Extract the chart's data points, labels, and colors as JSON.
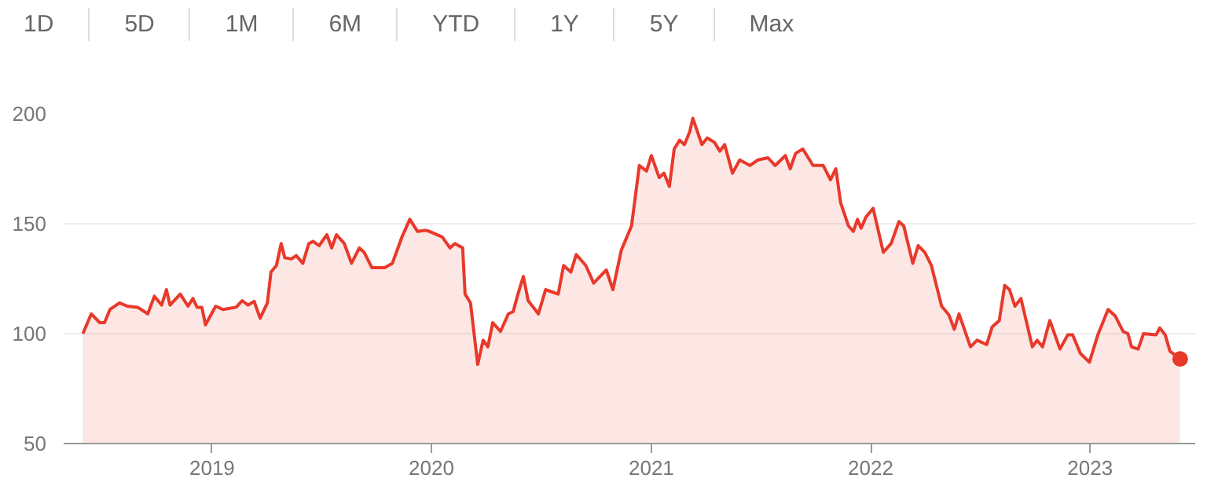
{
  "chart_data": {
    "type": "area",
    "annotations": [
      "1D",
      "5D",
      "1M",
      "6M",
      "YTD",
      "1Y",
      "5Y",
      "Max"
    ],
    "x": [
      "2018-05-31",
      "2018-06-14",
      "2018-06-28",
      "2018-07-06",
      "2018-07-15",
      "2018-07-31",
      "2018-08-13",
      "2018-08-30",
      "2018-09-16",
      "2018-09-27",
      "2018-10-09",
      "2018-10-17",
      "2018-10-23",
      "2018-11-09",
      "2018-11-22",
      "2018-11-30",
      "2018-12-07",
      "2018-12-15",
      "2018-12-21",
      "2019-01-07",
      "2019-01-19",
      "2019-02-10",
      "2019-02-20",
      "2019-03-02",
      "2019-03-12",
      "2019-03-22",
      "2019-04-03",
      "2019-04-09",
      "2019-04-18",
      "2019-04-26",
      "2019-05-02",
      "2019-05-13",
      "2019-05-21",
      "2019-06-01",
      "2019-06-11",
      "2019-06-18",
      "2019-06-28",
      "2019-07-11",
      "2019-07-19",
      "2019-07-27",
      "2019-08-09",
      "2019-08-21",
      "2019-09-03",
      "2019-09-11",
      "2019-09-24",
      "2019-10-15",
      "2019-10-28",
      "2019-11-13",
      "2019-11-26",
      "2019-12-09",
      "2019-12-21",
      "2019-12-29",
      "2020-01-19",
      "2020-02-01",
      "2020-02-09",
      "2020-02-22",
      "2020-02-26",
      "2020-03-06",
      "2020-03-18",
      "2020-03-27",
      "2020-04-04",
      "2020-04-12",
      "2020-04-25",
      "2020-05-08",
      "2020-05-16",
      "2020-05-24",
      "2020-06-02",
      "2020-06-10",
      "2020-06-27",
      "2020-07-09",
      "2020-07-30",
      "2020-08-08",
      "2020-08-20",
      "2020-08-29",
      "2020-09-14",
      "2020-09-27",
      "2020-10-18",
      "2020-10-29",
      "2020-11-12",
      "2020-11-29",
      "2020-12-12",
      "2020-12-24",
      "2021-01-01",
      "2021-01-14",
      "2021-01-22",
      "2021-01-31",
      "2021-02-08",
      "2021-02-17",
      "2021-02-25",
      "2021-03-06",
      "2021-03-11",
      "2021-03-26",
      "2021-04-04",
      "2021-04-16",
      "2021-04-25",
      "2021-05-03",
      "2021-05-16",
      "2021-05-28",
      "2021-06-14",
      "2021-06-27",
      "2021-07-14",
      "2021-07-26",
      "2021-08-12",
      "2021-08-20",
      "2021-08-29",
      "2021-09-10",
      "2021-09-27",
      "2021-10-14",
      "2021-10-26",
      "2021-11-04",
      "2021-11-12",
      "2021-11-25",
      "2021-12-03",
      "2021-12-10",
      "2021-12-16",
      "2021-12-24",
      "2022-01-05",
      "2022-01-22",
      "2022-02-04",
      "2022-02-17",
      "2022-02-25",
      "2022-03-12",
      "2022-03-21",
      "2022-04-01",
      "2022-04-12",
      "2022-04-29",
      "2022-05-11",
      "2022-05-20",
      "2022-05-28",
      "2022-06-16",
      "2022-06-27",
      "2022-07-13",
      "2022-07-22",
      "2022-08-03",
      "2022-08-12",
      "2022-08-20",
      "2022-08-29",
      "2022-09-08",
      "2022-09-27",
      "2022-10-05",
      "2022-10-14",
      "2022-10-26",
      "2022-11-12",
      "2022-11-25",
      "2022-12-03",
      "2022-12-16",
      "2022-12-31",
      "2023-01-14",
      "2023-01-31",
      "2023-02-12",
      "2023-02-25",
      "2023-03-05",
      "2023-03-11",
      "2023-03-22",
      "2023-03-31",
      "2023-04-21",
      "2023-04-27",
      "2023-05-06",
      "2023-05-14",
      "2023-05-31"
    ],
    "series": [
      {
        "color": "#e8392b",
        "values": [
          100,
          109,
          105,
          105,
          111,
          114,
          112.5,
          112,
          109,
          117,
          113,
          120,
          113,
          118,
          112.5,
          116,
          112,
          112,
          104,
          112.5,
          111,
          112,
          115,
          113,
          114.7,
          107,
          114,
          128,
          131,
          141,
          134.5,
          134,
          135.5,
          132,
          141,
          142,
          140,
          145,
          139,
          145,
          141,
          132,
          139,
          137,
          130,
          130,
          132,
          144,
          152,
          146.5,
          147,
          146.5,
          144,
          139,
          141,
          139,
          118,
          114,
          86,
          97,
          94,
          105,
          101,
          109,
          110,
          118,
          126,
          115,
          109,
          120,
          118,
          131,
          128,
          136,
          131,
          123,
          129,
          120,
          138,
          149,
          176.5,
          174,
          181,
          171,
          173,
          167,
          184,
          188,
          186,
          192,
          198,
          186,
          189,
          187,
          183,
          186,
          173,
          179,
          176.5,
          179,
          180,
          176.5,
          181,
          175,
          182,
          184,
          176.5,
          176.5,
          170,
          175,
          159.5,
          149,
          146.5,
          152,
          148,
          153,
          157,
          137,
          141,
          151,
          149,
          132,
          140,
          137,
          131,
          112.5,
          108.6,
          102,
          109,
          94,
          97,
          95,
          103,
          106,
          122,
          120,
          112.5,
          116,
          94,
          97,
          94,
          106,
          93,
          99.5,
          99.5,
          91,
          87,
          99.5,
          111,
          108,
          101,
          100,
          94,
          93,
          100,
          99.5,
          102.6,
          99.5,
          92,
          88.5
        ]
      },
      {
        "type": "scatter",
        "color": "#e8392b",
        "marker": "circle",
        "x": [
          "2023-05-31"
        ],
        "values": [
          88.5
        ]
      }
    ],
    "xlim": [
      "2018-04-29",
      "2023-06-25"
    ],
    "xticks": [
      "2019",
      "2020",
      "2021",
      "2022",
      "2023"
    ],
    "ylim": [
      50,
      200
    ],
    "yticks": [
      50,
      100,
      150,
      200
    ],
    "grid": "y",
    "marker": "none",
    "line_style": "solid"
  }
}
